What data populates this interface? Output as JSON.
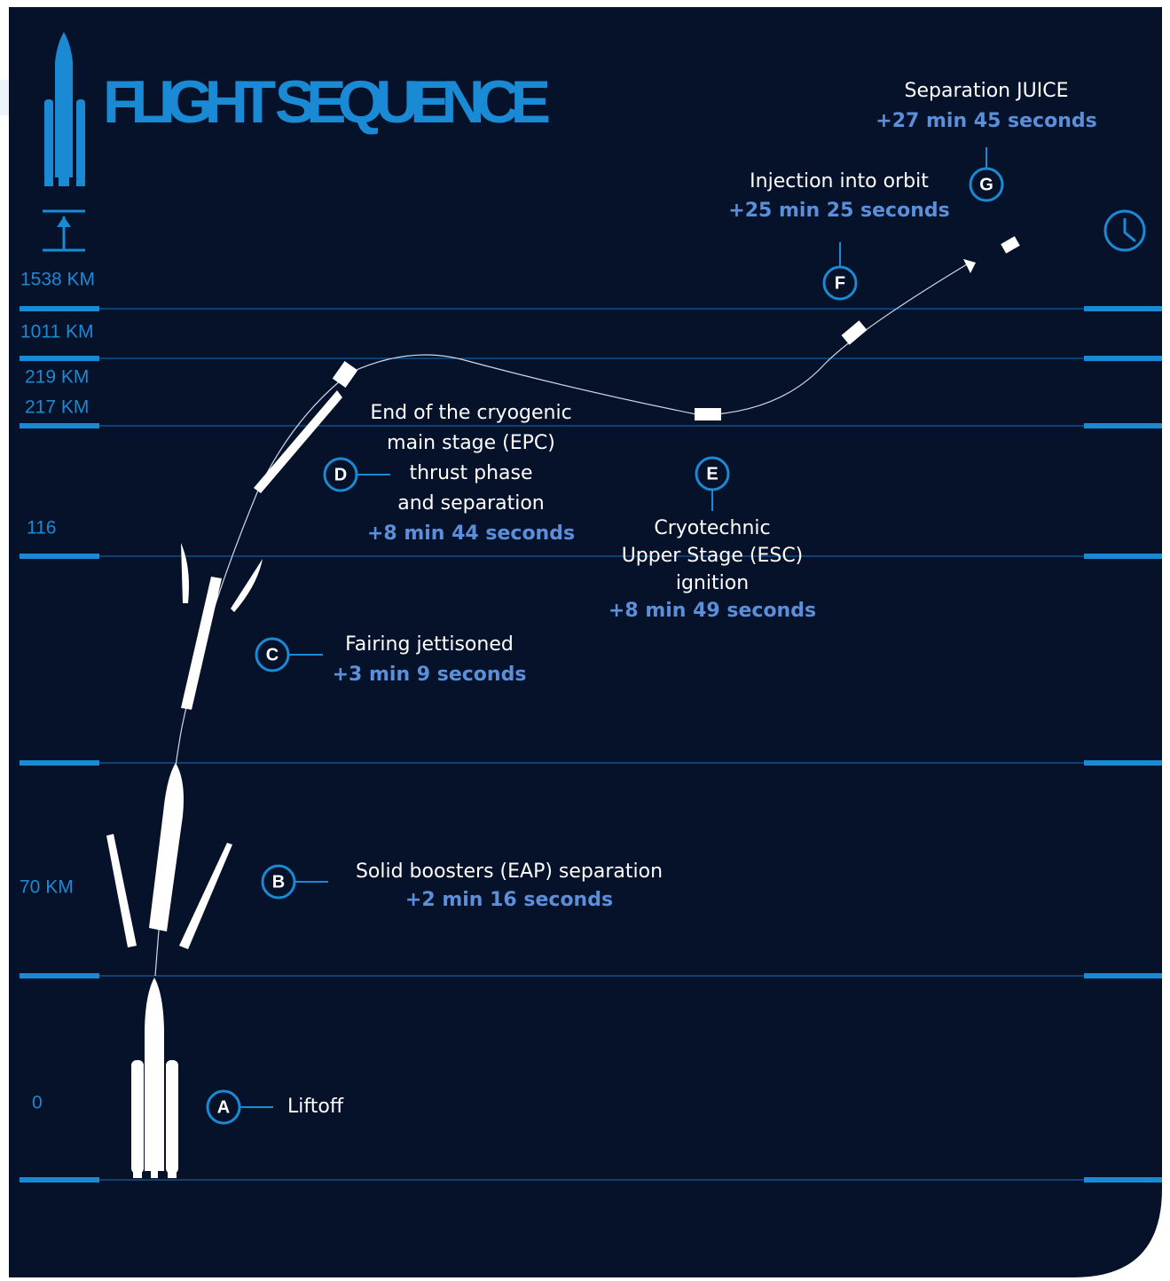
{
  "header": {
    "title": "FLIGHT SEQUENCE"
  },
  "altitudes": [
    "1538 KM",
    "1011 KM",
    "219 KM",
    "217 KM",
    "116",
    "70 KM",
    "0"
  ],
  "events": [
    {
      "letter": "A",
      "label": [
        "Liftoff"
      ]
    },
    {
      "letter": "B",
      "label": [
        "Solid boosters (EAP) separation"
      ],
      "time": "+2 min 16 seconds"
    },
    {
      "letter": "C",
      "label": [
        "Fairing jettisoned"
      ],
      "time": "+3 min 9 seconds"
    },
    {
      "letter": "D",
      "label": [
        "End of the cryogenic",
        "main stage (EPC)",
        "thrust phase",
        "and separation"
      ],
      "time": "+8 min 44 seconds"
    },
    {
      "letter": "E",
      "label": [
        "Cryotechnic",
        "Upper Stage (ESC)",
        "ignition"
      ],
      "time": "+8 min 49 seconds"
    },
    {
      "letter": "F",
      "label": [
        "Injection into orbit"
      ],
      "time": "+25 min 25 seconds"
    },
    {
      "letter": "G",
      "label": [
        "Separation JUICE"
      ],
      "time": "+27 min 45 seconds"
    }
  ]
}
